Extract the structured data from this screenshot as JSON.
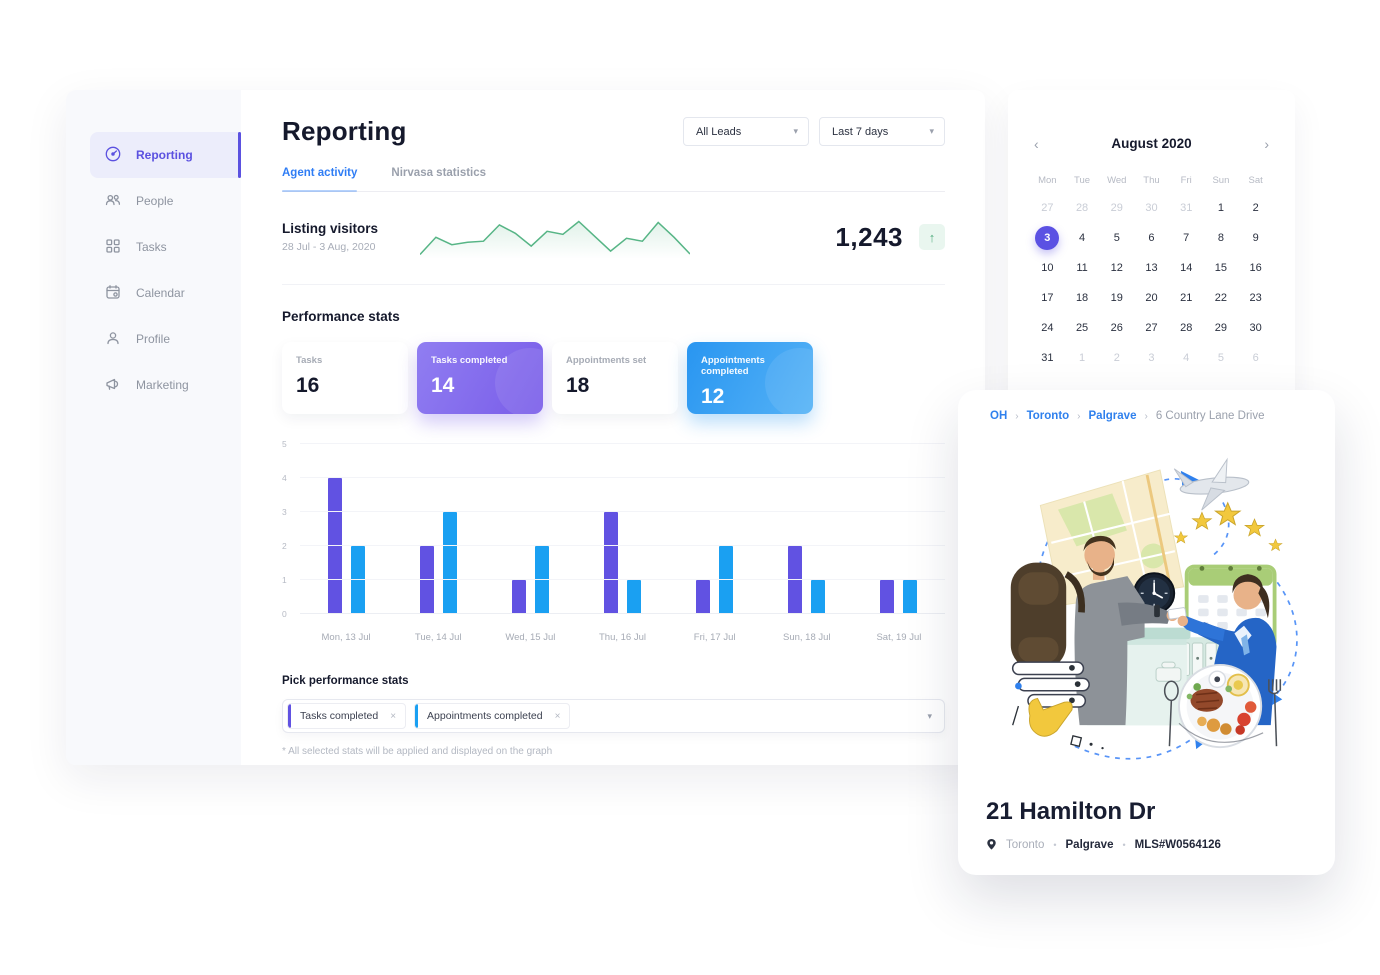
{
  "colors": {
    "accent_purple": "#5b51e0",
    "bar_purple": "#6152e2",
    "bar_blue": "#1aa0f2",
    "link_blue": "#2f80ed",
    "sparkline_green": "#57b586",
    "card_purple_gradient": [
      "#8f7cf1",
      "#7a5ee9"
    ],
    "card_blue_gradient": [
      "#2b97f1",
      "#53b1f6"
    ]
  },
  "icons": {
    "chevron_down": "▾",
    "arrow_up": "↑",
    "prev": "‹",
    "next": "›",
    "close": "×",
    "bullet": "•",
    "crumb_sep": "›"
  },
  "sidebar": {
    "items": [
      {
        "label": "Reporting",
        "icon": "gauge-icon",
        "active": true
      },
      {
        "label": "People",
        "icon": "people-icon",
        "active": false
      },
      {
        "label": "Tasks",
        "icon": "tasks-icon",
        "active": false
      },
      {
        "label": "Calendar",
        "icon": "calendar-icon",
        "active": false
      },
      {
        "label": "Profile",
        "icon": "profile-icon",
        "active": false
      },
      {
        "label": "Marketing",
        "icon": "megaphone-icon",
        "active": false
      }
    ]
  },
  "header": {
    "title": "Reporting",
    "lead_filter": "All Leads",
    "date_filter": "Last 7 days",
    "tabs": [
      {
        "label": "Agent activity",
        "active": true
      },
      {
        "label": "Nirvasa statistics",
        "active": false
      }
    ]
  },
  "listing_visitors": {
    "title": "Listing visitors",
    "date_range": "28 Jul - 3 Aug, 2020",
    "value": "1,243",
    "trend": "up"
  },
  "performance": {
    "title": "Performance stats",
    "cards": [
      {
        "label": "Tasks",
        "value": "16",
        "variant": "white"
      },
      {
        "label": "Tasks completed",
        "value": "14",
        "variant": "purple"
      },
      {
        "label": "Appointments set",
        "value": "18",
        "variant": "white"
      },
      {
        "label": "Appointments completed",
        "value": "12",
        "variant": "blue"
      }
    ]
  },
  "chart_data": [
    {
      "type": "bar",
      "title": "Performance stats by day",
      "categories": [
        "Mon, 13 Jul",
        "Tue, 14 Jul",
        "Wed, 15 Jul",
        "Thu, 16 Jul",
        "Fri, 17 Jul",
        "Sun, 18 Jul",
        "Sat, 19 Jul"
      ],
      "series": [
        {
          "name": "Tasks completed",
          "color": "#6152e2",
          "values": [
            4,
            2,
            1,
            3,
            1,
            2,
            1
          ]
        },
        {
          "name": "Appointments completed",
          "color": "#1aa0f2",
          "values": [
            2,
            3,
            2,
            1,
            2,
            1,
            1
          ]
        }
      ],
      "ylim": [
        0,
        5
      ],
      "yticks": [
        0,
        1,
        2,
        3,
        4,
        5
      ],
      "grid": true,
      "legend": "none"
    },
    {
      "type": "area",
      "title": "Listing visitors sparkline",
      "x_range": "28 Jul - 3 Aug, 2020",
      "values": [
        0.5,
        4,
        2.5,
        3,
        3.2,
        6.5,
        4.8,
        2.2,
        5.2,
        4.6,
        7.2,
        4.2,
        1.2,
        3.8,
        3.2,
        7.0,
        4.0,
        0.6
      ],
      "color": "#57b586"
    }
  ],
  "picker": {
    "title": "Pick performance stats",
    "tags": [
      {
        "label": "Tasks completed",
        "color": "#6152e2"
      },
      {
        "label": "Appointments completed",
        "color": "#1aa0f2"
      }
    ],
    "note": "* All selected stats will be applied and displayed on the graph"
  },
  "calendar": {
    "title": "August 2020",
    "weekdays": [
      "Mon",
      "Tue",
      "Wed",
      "Thu",
      "Fri",
      "Sun",
      "Sat"
    ],
    "selected_day": "3",
    "weeks": [
      [
        {
          "d": "27",
          "m": 1
        },
        {
          "d": "28",
          "m": 1
        },
        {
          "d": "29",
          "m": 1
        },
        {
          "d": "30",
          "m": 1
        },
        {
          "d": "31",
          "m": 1
        },
        {
          "d": "1"
        },
        {
          "d": "2"
        }
      ],
      [
        {
          "d": "3",
          "sel": 1
        },
        {
          "d": "4"
        },
        {
          "d": "5"
        },
        {
          "d": "6"
        },
        {
          "d": "7"
        },
        {
          "d": "8"
        },
        {
          "d": "9"
        }
      ],
      [
        {
          "d": "10"
        },
        {
          "d": "11"
        },
        {
          "d": "12"
        },
        {
          "d": "13"
        },
        {
          "d": "14"
        },
        {
          "d": "15"
        },
        {
          "d": "16"
        }
      ],
      [
        {
          "d": "17"
        },
        {
          "d": "18"
        },
        {
          "d": "19"
        },
        {
          "d": "20"
        },
        {
          "d": "21"
        },
        {
          "d": "22"
        },
        {
          "d": "23"
        }
      ],
      [
        {
          "d": "24"
        },
        {
          "d": "25"
        },
        {
          "d": "26"
        },
        {
          "d": "27"
        },
        {
          "d": "28"
        },
        {
          "d": "29"
        },
        {
          "d": "30"
        }
      ],
      [
        {
          "d": "31"
        },
        {
          "d": "1",
          "m": 1
        },
        {
          "d": "2",
          "m": 1
        },
        {
          "d": "3",
          "m": 1
        },
        {
          "d": "4",
          "m": 1
        },
        {
          "d": "5",
          "m": 1
        },
        {
          "d": "6",
          "m": 1
        }
      ]
    ]
  },
  "property": {
    "breadcrumb": [
      {
        "label": "OH",
        "link": true
      },
      {
        "label": "Toronto",
        "link": true
      },
      {
        "label": "Palgrave",
        "link": true
      },
      {
        "label": "6 Country Lane Drive",
        "link": false
      }
    ],
    "title": "21 Hamilton Dr",
    "meta": [
      {
        "label": "Toronto",
        "muted": true,
        "icon": "location-pin-icon"
      },
      {
        "label": "Palgrave"
      },
      {
        "label": "MLS#W0564126"
      }
    ]
  }
}
